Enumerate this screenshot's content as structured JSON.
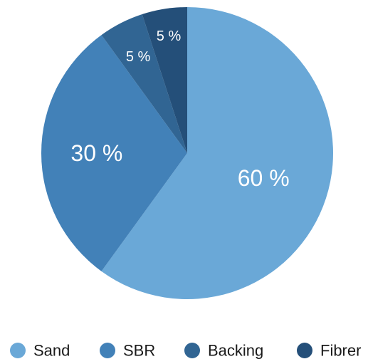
{
  "chart_data": {
    "type": "pie",
    "title": "",
    "categories": [
      "Sand",
      "SBR",
      "Backing",
      "Fibrer"
    ],
    "values": [
      60,
      30,
      5,
      5
    ],
    "labels": [
      "60 %",
      "30 %",
      "5 %",
      "5 %"
    ],
    "colors": [
      "#6aa8d7",
      "#4281b8",
      "#316593",
      "#244f79"
    ],
    "label_color": "#ffffff",
    "start_angle_deg": 0,
    "direction": "clockwise",
    "legend": {
      "position": "bottom",
      "items": [
        "Sand",
        "SBR",
        "Backing",
        "Fibrer"
      ]
    }
  }
}
